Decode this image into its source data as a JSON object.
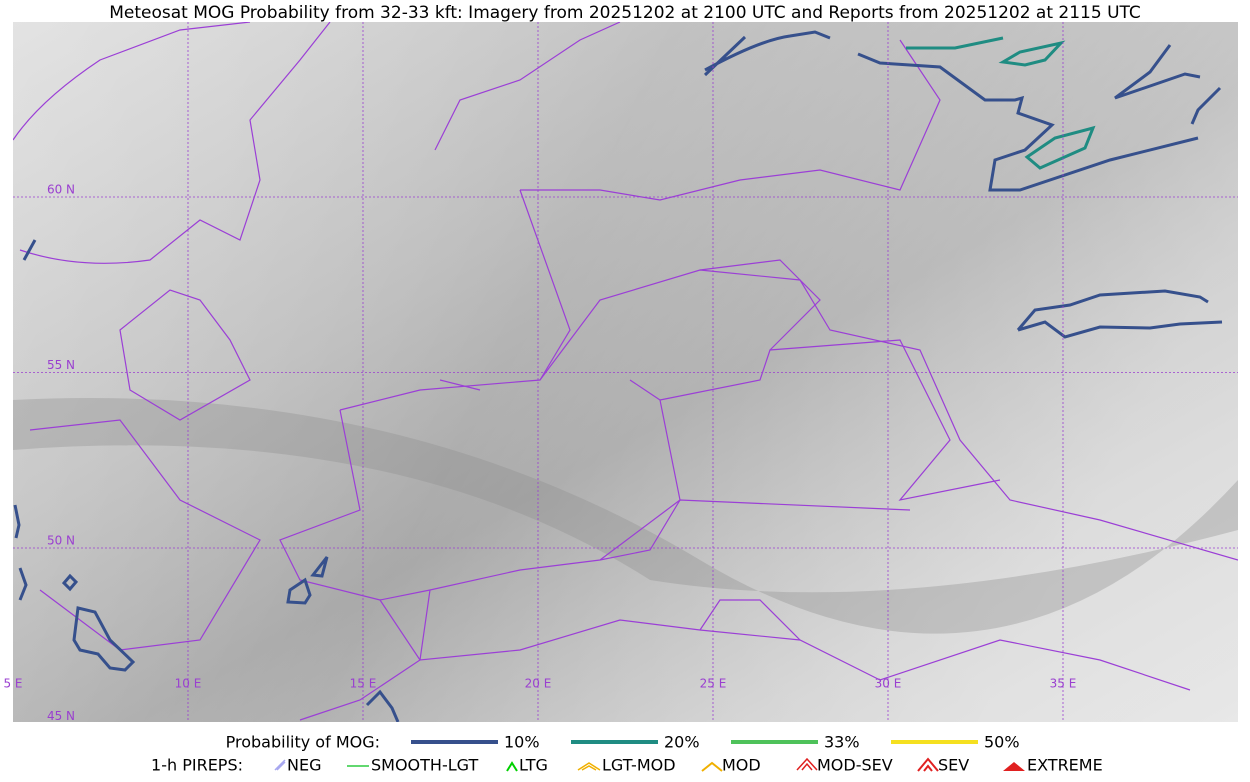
{
  "title": "Meteosat MOG Probability from 32-33 kft: Imagery from 20251202 at 2100 UTC and Reports from 20251202 at 2115 UTC",
  "map": {
    "lon_labels": [
      "5 E",
      "10 E",
      "15 E",
      "20 E",
      "25 E",
      "30 E",
      "35 E"
    ],
    "lat_labels": [
      "60 N",
      "55 N",
      "50 N",
      "45 N"
    ]
  },
  "legend": {
    "title": "Probability of MOG:",
    "items": [
      {
        "label": "10%",
        "color": "#36508c"
      },
      {
        "label": "20%",
        "color": "#1f8c82"
      },
      {
        "label": "33%",
        "color": "#4ec25a"
      },
      {
        "label": "50%",
        "color": "#f5e020"
      }
    ]
  },
  "pireps": {
    "title": "1-h PIREPS:",
    "items": [
      "NEG",
      "SMOOTH-LGT",
      "LTG",
      "LGT-MOD",
      "MOD",
      "MOD-SEV",
      "SEV",
      "EXTREME"
    ]
  }
}
